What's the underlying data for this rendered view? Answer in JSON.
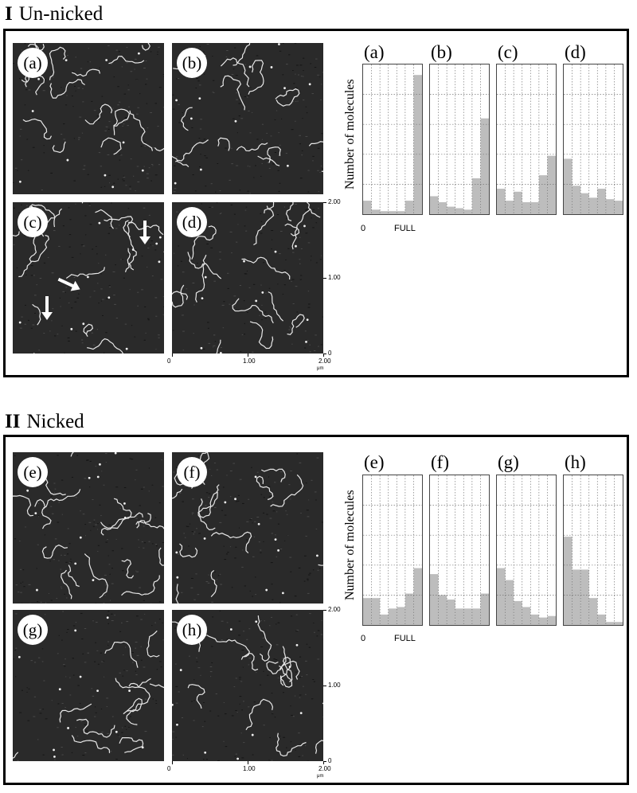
{
  "sections": [
    {
      "numeral": "I",
      "title": "Un-nicked",
      "images": [
        "(a)",
        "(b)",
        "(c)",
        "(d)"
      ],
      "ylabel": "Number of molecules",
      "x_start_label": "0",
      "x_end_label": "FULL",
      "scale": {
        "y_ticks": [
          "2.00",
          "1.00",
          "0"
        ],
        "x_ticks": [
          "0",
          "1.00",
          "2.00"
        ],
        "unit": "μm"
      }
    },
    {
      "numeral": "II",
      "title": "Nicked",
      "images": [
        "(e)",
        "(f)",
        "(g)",
        "(h)"
      ],
      "ylabel": "Number of molecules",
      "x_start_label": "0",
      "x_end_label": "FULL",
      "scale": {
        "y_ticks": [
          "2.00",
          "1.00",
          "0"
        ],
        "x_ticks": [
          "0",
          "1.00",
          "2.00"
        ],
        "unit": "μm"
      }
    }
  ],
  "chart_data": [
    {
      "type": "bar",
      "label": "(a)",
      "values": [
        0.09,
        0.03,
        0.02,
        0.02,
        0.02,
        0.09,
        0.93
      ],
      "ylim": [
        0,
        1
      ],
      "x_start": "0",
      "x_end": "FULL",
      "grid": true
    },
    {
      "type": "bar",
      "label": "(b)",
      "values": [
        0.12,
        0.08,
        0.05,
        0.04,
        0.03,
        0.24,
        0.64
      ],
      "ylim": [
        0,
        1
      ],
      "x_start": "0",
      "x_end": "FULL",
      "grid": true
    },
    {
      "type": "bar",
      "label": "(c)",
      "values": [
        0.17,
        0.09,
        0.15,
        0.08,
        0.08,
        0.26,
        0.39
      ],
      "ylim": [
        0,
        1
      ],
      "x_start": "0",
      "x_end": "FULL",
      "grid": true
    },
    {
      "type": "bar",
      "label": "(d)",
      "values": [
        0.37,
        0.19,
        0.14,
        0.11,
        0.17,
        0.1,
        0.09
      ],
      "ylim": [
        0,
        1
      ],
      "x_start": "0",
      "x_end": "FULL",
      "grid": true
    },
    {
      "type": "bar",
      "label": "(e)",
      "values": [
        0.18,
        0.18,
        0.07,
        0.11,
        0.12,
        0.21,
        0.38
      ],
      "ylim": [
        0,
        1
      ],
      "x_start": "0",
      "x_end": "FULL",
      "grid": true
    },
    {
      "type": "bar",
      "label": "(f)",
      "values": [
        0.34,
        0.2,
        0.17,
        0.11,
        0.11,
        0.11,
        0.21
      ],
      "ylim": [
        0,
        1
      ],
      "x_start": "0",
      "x_end": "FULL",
      "grid": true
    },
    {
      "type": "bar",
      "label": "(g)",
      "values": [
        0.38,
        0.3,
        0.16,
        0.12,
        0.07,
        0.05,
        0.06
      ],
      "ylim": [
        0,
        1
      ],
      "x_start": "0",
      "x_end": "FULL",
      "grid": true
    },
    {
      "type": "bar",
      "label": "(h)",
      "values": [
        0.59,
        0.37,
        0.37,
        0.18,
        0.07,
        0.02,
        0.02
      ],
      "ylim": [
        0,
        1
      ],
      "x_start": "0",
      "x_end": "FULL",
      "grid": true
    }
  ]
}
